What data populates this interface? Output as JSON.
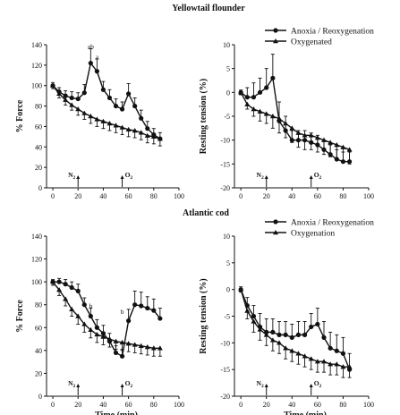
{
  "titles": [
    "Yellowtail flounder",
    "Atlantic cod"
  ],
  "chart_data": [
    {
      "type": "line",
      "ylabel": "% Force",
      "xlabel": "",
      "xlim": [
        -5,
        100
      ],
      "xticks": [
        0,
        20,
        40,
        60,
        80,
        100
      ],
      "ylim": [
        0,
        140
      ],
      "yticks": [
        0,
        20,
        40,
        60,
        80,
        100,
        120,
        140
      ],
      "legend": {
        "position": "top-right",
        "entries": [
          "Anoxia / Reoxygenation",
          "Oxygenated"
        ]
      },
      "series": [
        {
          "name": "Anoxia / Reoxygenation",
          "marker": "circle",
          "x": [
            0,
            5,
            10,
            15,
            20,
            25,
            30,
            35,
            40,
            45,
            50,
            55,
            60,
            65,
            70,
            75,
            80,
            85
          ],
          "y": [
            100,
            94,
            90,
            88,
            87,
            93,
            122,
            114,
            96,
            88,
            80,
            77,
            92,
            80,
            68,
            58,
            52,
            48
          ],
          "err": [
            3,
            4,
            5,
            6,
            6,
            8,
            14,
            12,
            8,
            8,
            7,
            7,
            10,
            8,
            8,
            7,
            6,
            6
          ]
        },
        {
          "name": "Oxygenated",
          "marker": "triangle",
          "x": [
            0,
            5,
            10,
            15,
            20,
            25,
            30,
            35,
            40,
            45,
            50,
            55,
            60,
            65,
            70,
            75,
            80,
            85
          ],
          "y": [
            100,
            92,
            86,
            81,
            77,
            73,
            70,
            67,
            65,
            63,
            61,
            59,
            57,
            56,
            54,
            51,
            50,
            48
          ],
          "err": [
            3,
            4,
            5,
            5,
            6,
            6,
            7,
            7,
            7,
            7,
            7,
            7,
            7,
            7,
            7,
            7,
            7,
            7
          ]
        }
      ],
      "annotations": [
        {
          "text": "ab",
          "x": 30,
          "y": 136
        },
        {
          "text": "a",
          "x": 35,
          "y": 126
        }
      ],
      "gas_markers": [
        {
          "label": "N2",
          "x": 20
        },
        {
          "label": "O2",
          "x": 55
        }
      ]
    },
    {
      "type": "line",
      "ylabel": "Resting tension (%)",
      "xlabel": "",
      "xlim": [
        -5,
        100
      ],
      "xticks": [
        0,
        20,
        40,
        60,
        80,
        100
      ],
      "ylim": [
        -20,
        10
      ],
      "yticks": [
        -20,
        -15,
        -10,
        -5,
        0,
        5,
        10
      ],
      "series": [
        {
          "name": "Anoxia / Reoxygenation",
          "marker": "circle",
          "x": [
            0,
            5,
            10,
            15,
            20,
            25,
            30,
            35,
            40,
            45,
            50,
            55,
            60,
            65,
            70,
            75,
            80,
            85
          ],
          "y": [
            0,
            -1,
            -1,
            0,
            1,
            3,
            -6,
            -8,
            -10,
            -10,
            -10,
            -10.5,
            -11,
            -12,
            -13,
            -14,
            -14.5,
            -14.5
          ],
          "err": [
            0.5,
            2,
            3,
            3,
            4,
            5,
            4,
            3,
            2,
            2,
            2,
            2,
            2,
            2,
            2,
            2,
            2,
            2
          ]
        },
        {
          "name": "Oxygenated",
          "marker": "triangle",
          "x": [
            0,
            5,
            10,
            15,
            20,
            25,
            30,
            35,
            40,
            45,
            50,
            55,
            60,
            65,
            70,
            75,
            80,
            85
          ],
          "y": [
            0,
            -2.5,
            -3.5,
            -4,
            -4.5,
            -5,
            -5.5,
            -6.5,
            -7.5,
            -8.5,
            -9,
            -9,
            -9.5,
            -10,
            -10.5,
            -11,
            -11.5,
            -12
          ],
          "err": [
            0.5,
            1,
            1.5,
            2,
            2,
            2.5,
            3,
            3,
            3,
            3,
            3,
            3,
            3,
            3,
            3,
            3,
            3,
            3
          ]
        }
      ],
      "gas_markers": [
        {
          "label": "N2",
          "x": 20
        },
        {
          "label": "O2",
          "x": 55
        }
      ]
    },
    {
      "type": "line",
      "ylabel": "% Force",
      "xlabel": "Time (min)",
      "xlim": [
        -5,
        100
      ],
      "xticks": [
        0,
        20,
        40,
        60,
        80,
        100
      ],
      "ylim": [
        0,
        140
      ],
      "yticks": [
        0,
        20,
        40,
        60,
        80,
        100,
        120,
        140
      ],
      "legend": {
        "position": "top-right",
        "entries": [
          "Anoxia / Reoxygenation",
          "Oxygenation"
        ]
      },
      "series": [
        {
          "name": "Anoxia / Reoxygenation",
          "marker": "circle",
          "x": [
            0,
            5,
            10,
            15,
            20,
            25,
            30,
            35,
            40,
            45,
            50,
            55,
            60,
            65,
            70,
            75,
            80,
            85
          ],
          "y": [
            100,
            100,
            98,
            95,
            92,
            80,
            70,
            60,
            55,
            48,
            38,
            35,
            66,
            80,
            79,
            77,
            75,
            68
          ],
          "err": [
            2,
            3,
            4,
            5,
            6,
            6,
            7,
            7,
            7,
            7,
            6,
            6,
            10,
            12,
            12,
            10,
            10,
            9
          ]
        },
        {
          "name": "Oxygenation",
          "marker": "triangle",
          "x": [
            0,
            5,
            10,
            15,
            20,
            25,
            30,
            35,
            40,
            45,
            50,
            55,
            60,
            65,
            70,
            75,
            80,
            85
          ],
          "y": [
            100,
            93,
            85,
            76,
            70,
            63,
            58,
            54,
            52,
            50,
            48,
            47,
            46,
            45,
            44,
            43,
            42,
            42
          ],
          "err": [
            3,
            5,
            6,
            6,
            7,
            7,
            7,
            7,
            7,
            7,
            7,
            7,
            7,
            7,
            7,
            7,
            7,
            7
          ]
        }
      ],
      "annotations": [
        {
          "text": "b",
          "x": 30,
          "y": 77
        },
        {
          "text": "b",
          "x": 55,
          "y": 72
        }
      ],
      "gas_markers": [
        {
          "label": "N2",
          "x": 20
        },
        {
          "label": "O2",
          "x": 55
        }
      ]
    },
    {
      "type": "line",
      "ylabel": "Resting tension (%)",
      "xlabel": "Time (min)",
      "xlim": [
        -5,
        100
      ],
      "xticks": [
        0,
        20,
        40,
        60,
        80,
        100
      ],
      "ylim": [
        -20,
        10
      ],
      "yticks": [
        -20,
        -15,
        -10,
        -5,
        0,
        5,
        10
      ],
      "series": [
        {
          "name": "Anoxia / Reoxygenation",
          "marker": "circle",
          "x": [
            0,
            5,
            10,
            15,
            20,
            25,
            30,
            35,
            40,
            45,
            50,
            55,
            60,
            65,
            70,
            75,
            80,
            85
          ],
          "y": [
            0,
            -3,
            -5,
            -7,
            -8,
            -8,
            -8.5,
            -8.5,
            -9,
            -8.5,
            -8.5,
            -7,
            -6.5,
            -9,
            -11,
            -11.5,
            -12,
            -15
          ],
          "err": [
            0.5,
            1.5,
            2,
            2.5,
            2.5,
            2.5,
            2.5,
            2.5,
            2.5,
            2.5,
            2.5,
            2.5,
            3,
            3,
            3,
            3,
            3,
            3
          ]
        },
        {
          "name": "Oxygenation",
          "marker": "triangle",
          "x": [
            0,
            5,
            10,
            15,
            20,
            25,
            30,
            35,
            40,
            45,
            50,
            55,
            60,
            65,
            70,
            75,
            80,
            85
          ],
          "y": [
            0,
            -4,
            -6,
            -7.5,
            -8.5,
            -9.5,
            -10,
            -11,
            -11.5,
            -12,
            -12.5,
            -13,
            -13.5,
            -13.5,
            -14,
            -14,
            -14.5,
            -14.5
          ],
          "err": [
            0.5,
            1.5,
            2,
            2,
            2,
            2,
            2,
            2,
            2,
            2,
            2,
            2,
            2,
            2,
            2,
            2,
            2,
            2
          ]
        }
      ],
      "gas_markers": [
        {
          "label": "N2",
          "x": 20
        },
        {
          "label": "O2",
          "x": 55
        }
      ]
    }
  ]
}
